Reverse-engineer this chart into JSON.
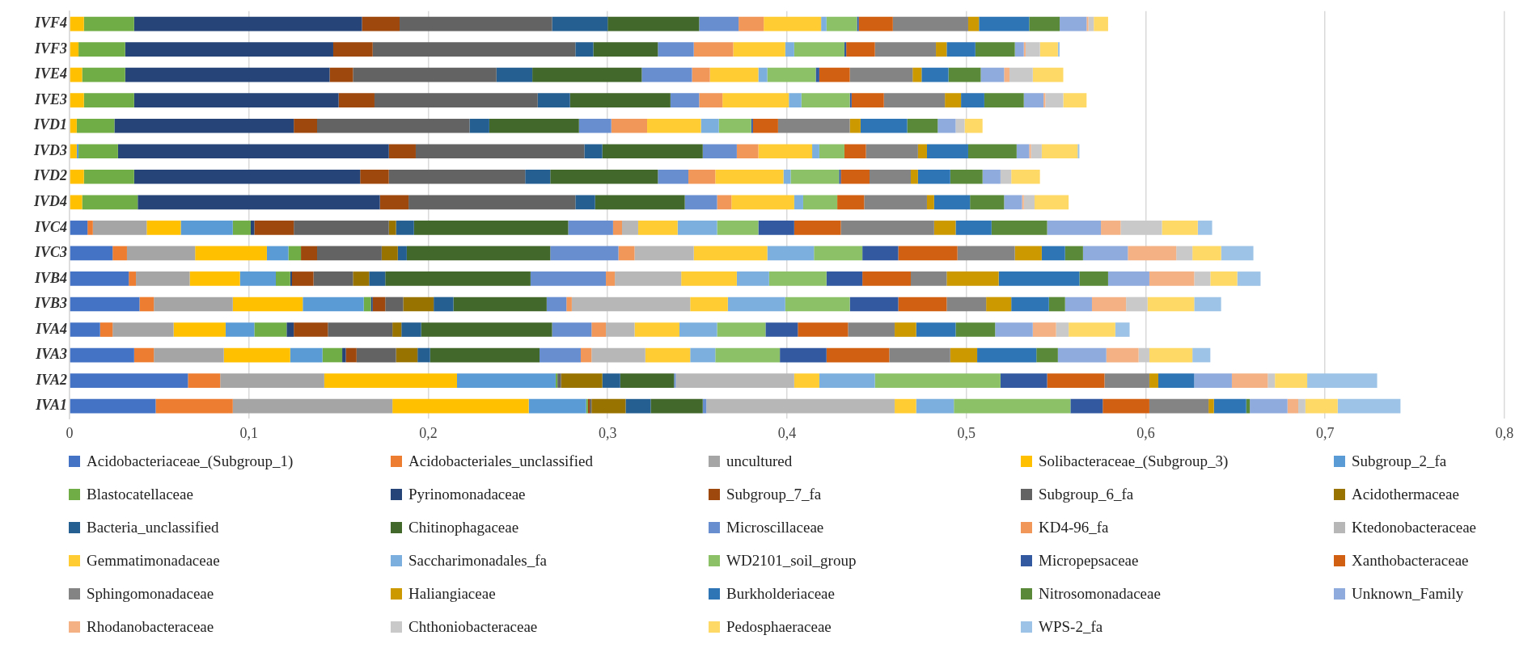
{
  "chart_data": {
    "type": "bar",
    "orientation": "horizontal",
    "stacked": true,
    "grid": "x",
    "legend": "bottom",
    "categories": [
      "IVF4",
      "IVF3",
      "IVE4",
      "IVE3",
      "IVD1",
      "IVD3",
      "IVD2",
      "IVD4",
      "IVC4",
      "IVC3",
      "IVB4",
      "IVB3",
      "IVA4",
      "IVA3",
      "IVA2",
      "IVA1"
    ],
    "xlim": [
      0,
      0.8
    ],
    "xticks": [
      0,
      {
        "value": 0.1,
        "label": "0,1"
      },
      {
        "value": 0.2,
        "label": "0,2"
      },
      {
        "value": 0.3,
        "label": "0,3"
      },
      {
        "value": 0.4,
        "label": "0,4"
      },
      {
        "value": 0.5,
        "label": "0,5"
      },
      {
        "value": 0.6,
        "label": "0,6"
      },
      {
        "value": 0.7,
        "label": "0,7"
      },
      {
        "value": 0.8,
        "label": "0,8"
      }
    ],
    "series": [
      {
        "name": "Acidobacteriaceae_(Subgroup_1)",
        "color": "#4472c4",
        "values": [
          0,
          0,
          0,
          0,
          0,
          0,
          0,
          0,
          0.01,
          0.024,
          0.033,
          0.039,
          0.017,
          0.036,
          0.066,
          0.048
        ]
      },
      {
        "name": "Acidobacteriales_unclassified",
        "color": "#ed7d31",
        "values": [
          0,
          0,
          0,
          0,
          0,
          0,
          0,
          0,
          0.003,
          0.008,
          0.004,
          0.008,
          0.007,
          0.011,
          0.018,
          0.043
        ]
      },
      {
        "name": "uncultured",
        "color": "#a5a5a5",
        "values": [
          0,
          0,
          null,
          null,
          0,
          0,
          0,
          0,
          0.03,
          0.038,
          0.03,
          0.044,
          0.034,
          0.039,
          0.058,
          0.089
        ]
      },
      {
        "name": "Solibacteraceae_(Subgroup_3)",
        "color": "#ffc000",
        "values": [
          0.008,
          0.005,
          0.007,
          0.008,
          0.004,
          0.004,
          0.008,
          0.007,
          0.019,
          0.04,
          0.028,
          0.039,
          0.029,
          0.037,
          0.074,
          0.076
        ]
      },
      {
        "name": "Subgroup_2_fa",
        "color": "#5b9bd5",
        "values": [
          0,
          0,
          0,
          0,
          0,
          0.001,
          0,
          0,
          0.029,
          0.012,
          0.02,
          0.034,
          0.016,
          0.018,
          0.055,
          0.032
        ]
      },
      {
        "name": "Blastocatellaceae",
        "color": "#70ad47",
        "values": [
          0.028,
          0.026,
          0.024,
          0.028,
          0.021,
          0.022,
          0.028,
          0.031,
          0.01,
          0.007,
          0.008,
          0.004,
          0.018,
          0.011,
          0.001,
          0.001
        ]
      },
      {
        "name": "Pyrinomonadaceae",
        "color": "#264478",
        "values": [
          0.127,
          0.116,
          0.114,
          0.114,
          0.1,
          0.151,
          0.126,
          0.135,
          0.002,
          0,
          0.001,
          0.001,
          0.004,
          0.002,
          0,
          0
        ]
      },
      {
        "name": "Subgroup_7_fa",
        "color": "#9e480e",
        "values": [
          0.021,
          0.022,
          0.013,
          0.02,
          0.013,
          0.015,
          0.016,
          0.016,
          0.022,
          0.009,
          0.012,
          0.007,
          0.019,
          0.006,
          0,
          0.001
        ]
      },
      {
        "name": "Subgroup_6_fa",
        "color": "#636363",
        "values": [
          0.085,
          0.113,
          0.08,
          0.091,
          0.085,
          0.094,
          0.076,
          0.093,
          0.053,
          0.036,
          0.022,
          0.01,
          0.036,
          0.022,
          0.002,
          0.001
        ]
      },
      {
        "name": "Acidothermaceae",
        "color": "#997300",
        "values": [
          0,
          0,
          0,
          0,
          0,
          0,
          0,
          0,
          0.004,
          0.009,
          0.009,
          0.017,
          0.005,
          0.012,
          0.023,
          0.019
        ]
      },
      {
        "name": "Bacteria_unclassified",
        "color": "#255e91",
        "values": [
          0.031,
          0.01,
          0.02,
          0.018,
          0.011,
          0.01,
          0.014,
          0.011,
          0.01,
          0.005,
          0.009,
          0.011,
          0.011,
          0.007,
          0.01,
          0.014
        ]
      },
      {
        "name": "Chitinophagaceae",
        "color": "#43682b",
        "values": [
          0.051,
          0.036,
          0.061,
          0.056,
          0.05,
          0.056,
          0.06,
          0.05,
          0.086,
          0.08,
          0.081,
          0.052,
          0.073,
          0.061,
          0.03,
          0.029
        ]
      },
      {
        "name": "Microscillaceae",
        "color": "#698ed0",
        "values": [
          0.022,
          0.02,
          0.028,
          0.016,
          0.018,
          0.019,
          0.017,
          0.018,
          0.025,
          0.038,
          0.042,
          0.011,
          0.022,
          0.023,
          0.001,
          0.002
        ]
      },
      {
        "name": "KD4-96_fa",
        "color": "#f1975a",
        "values": [
          0.014,
          0.022,
          0.01,
          0.013,
          0.02,
          0.012,
          0.015,
          0.008,
          0.005,
          0.009,
          0.005,
          0.003,
          0.008,
          0.006,
          0,
          0
        ]
      },
      {
        "name": "Ktedonobacteraceae",
        "color": "#b7b7b7",
        "values": [
          0,
          0,
          0,
          0,
          0,
          0,
          0,
          0,
          0.009,
          0.033,
          0.037,
          0.066,
          0.016,
          0.03,
          0.066,
          0.105
        ]
      },
      {
        "name": "Gemmatimonadaceae",
        "color": "#ffcd33",
        "values": [
          0.032,
          0.029,
          0.027,
          0.037,
          0.03,
          0.03,
          0.038,
          0.035,
          0.022,
          0.041,
          0.031,
          0.021,
          0.025,
          0.025,
          0.014,
          0.012
        ]
      },
      {
        "name": "Saccharimonadales_fa",
        "color": "#7cafdd",
        "values": [
          0.003,
          0.005,
          0.005,
          0.007,
          0.01,
          0.004,
          0.004,
          0.005,
          0.022,
          0.026,
          0.018,
          0.032,
          0.021,
          0.014,
          0.031,
          0.021
        ]
      },
      {
        "name": "WD2101_soil_group",
        "color": "#8cc168",
        "values": [
          0.017,
          0.028,
          0.027,
          0.027,
          0.018,
          0.014,
          0.027,
          0.019,
          0.023,
          0.027,
          0.032,
          0.036,
          0.027,
          0.036,
          0.07,
          0.065
        ]
      },
      {
        "name": "Micropepsaceae",
        "color": "#335aa1",
        "values": [
          0.001,
          0.001,
          0.002,
          0.001,
          0.001,
          0,
          0.001,
          0,
          0.02,
          0.02,
          0.02,
          0.027,
          0.018,
          0.026,
          0.026,
          0.018
        ]
      },
      {
        "name": "Xanthobacteraceae",
        "color": "#d26012",
        "values": [
          0.019,
          0.016,
          0.017,
          0.018,
          0.014,
          0.012,
          0.016,
          0.015,
          0.026,
          0.033,
          0.027,
          0.027,
          0.028,
          0.035,
          0.032,
          0.026
        ]
      },
      {
        "name": "Sphingomonadaceae",
        "color": "#848484",
        "values": [
          0.042,
          0.034,
          0.035,
          0.034,
          0.04,
          0.029,
          0.023,
          0.035,
          0.052,
          0.032,
          0.02,
          0.022,
          0.026,
          0.034,
          0.025,
          0.033
        ]
      },
      {
        "name": "Haliangiaceae",
        "color": "#cc9a00",
        "values": [
          0.006,
          0.006,
          0.005,
          0.009,
          0.006,
          0.005,
          0.004,
          0.004,
          0.012,
          0.015,
          0.029,
          0.014,
          0.012,
          0.015,
          0.005,
          0.003
        ]
      },
      {
        "name": "Burkholderiaceae",
        "color": "#2e75b6",
        "values": [
          0.028,
          0.016,
          0.015,
          0.013,
          0.026,
          0.023,
          0.018,
          0.02,
          0.02,
          0.013,
          0.045,
          0.021,
          0.022,
          0.033,
          0.02,
          0.018
        ]
      },
      {
        "name": "Nitrosomonadaceae",
        "color": "#5a8a39",
        "values": [
          0.017,
          0.022,
          0.018,
          0.022,
          0.017,
          0.027,
          0.018,
          0.019,
          0.031,
          0.01,
          0.016,
          0.009,
          0.022,
          0.012,
          0,
          0.002
        ]
      },
      {
        "name": "Unknown_Family",
        "color": "#8faadc",
        "values": [
          0.015,
          0.005,
          0.013,
          0.011,
          0.01,
          0.007,
          0.01,
          0.01,
          0.03,
          0.025,
          0.023,
          0.015,
          0.021,
          0.027,
          0.021,
          0.021
        ]
      },
      {
        "name": "Rhodanobacteraceae",
        "color": "#f4b183",
        "values": [
          0.001,
          0.001,
          0.003,
          0.001,
          0,
          0.001,
          0,
          0.001,
          0.011,
          0.027,
          0.025,
          0.019,
          0.013,
          0.018,
          0.02,
          0.006
        ]
      },
      {
        "name": "Chthoniobacteraceae",
        "color": "#c9c9c9",
        "values": [
          0.003,
          0.008,
          0.013,
          0.01,
          0.005,
          0.006,
          0.006,
          0.006,
          0.023,
          0.009,
          0.009,
          0.012,
          0.007,
          0.006,
          0.004,
          0.004
        ]
      },
      {
        "name": "Pedosphaeraceae",
        "color": "#ffd966",
        "values": [
          0.008,
          0.01,
          0.017,
          0.013,
          0.01,
          0.02,
          0.016,
          0.019,
          0.02,
          0.016,
          0.015,
          0.026,
          0.026,
          0.024,
          0.018,
          0.018
        ]
      },
      {
        "name": "WPS-2_fa",
        "color": "#9dc3e6",
        "values": [
          0,
          0.001,
          0,
          0,
          0,
          0.001,
          0,
          0,
          0.008,
          0.018,
          0.013,
          0.015,
          0.008,
          0.01,
          0.039,
          0.035
        ]
      }
    ]
  }
}
